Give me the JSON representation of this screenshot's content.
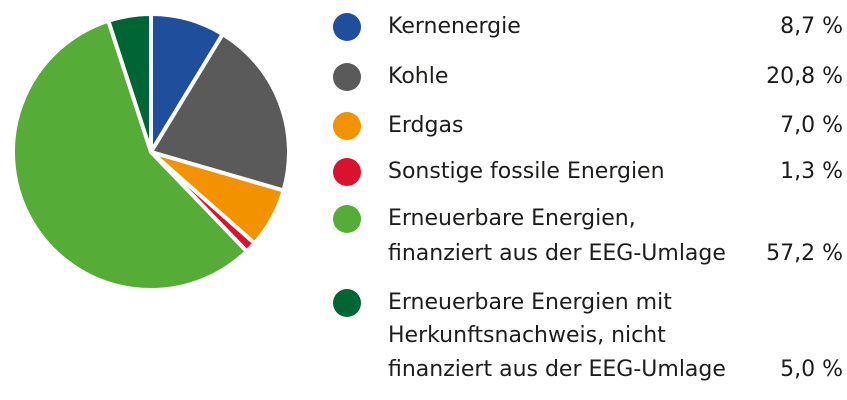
{
  "chart_data": {
    "type": "pie",
    "slices": [
      {
        "label_lines": [
          "Kernenergie"
        ],
        "value": 8.7,
        "value_text": "8,7 %",
        "color": "#1f4e9c"
      },
      {
        "label_lines": [
          "Kohle"
        ],
        "value": 20.8,
        "value_text": "20,8 %",
        "color": "#5a5a5a"
      },
      {
        "label_lines": [
          "Erdgas"
        ],
        "value": 7.0,
        "value_text": "7,0 %",
        "color": "#f39200"
      },
      {
        "label_lines": [
          "Sonstige fossile Energien"
        ],
        "value": 1.3,
        "value_text": "1,3 %",
        "color": "#d9132e"
      },
      {
        "label_lines": [
          "Erneuerbare Energien,",
          "finanziert aus der EEG-Umlage"
        ],
        "value": 57.2,
        "value_text": "57,2 %",
        "color": "#55ac36"
      },
      {
        "label_lines": [
          "Erneuerbare Energien mit",
          "Herkunftsnachweis, nicht",
          "finanziert aus der EEG-Umlage"
        ],
        "value": 5.0,
        "value_text": "5,0 %",
        "color": "#006534"
      }
    ],
    "start_angle": "12 o'clock",
    "direction": "clockwise",
    "legend_placement": "right"
  }
}
